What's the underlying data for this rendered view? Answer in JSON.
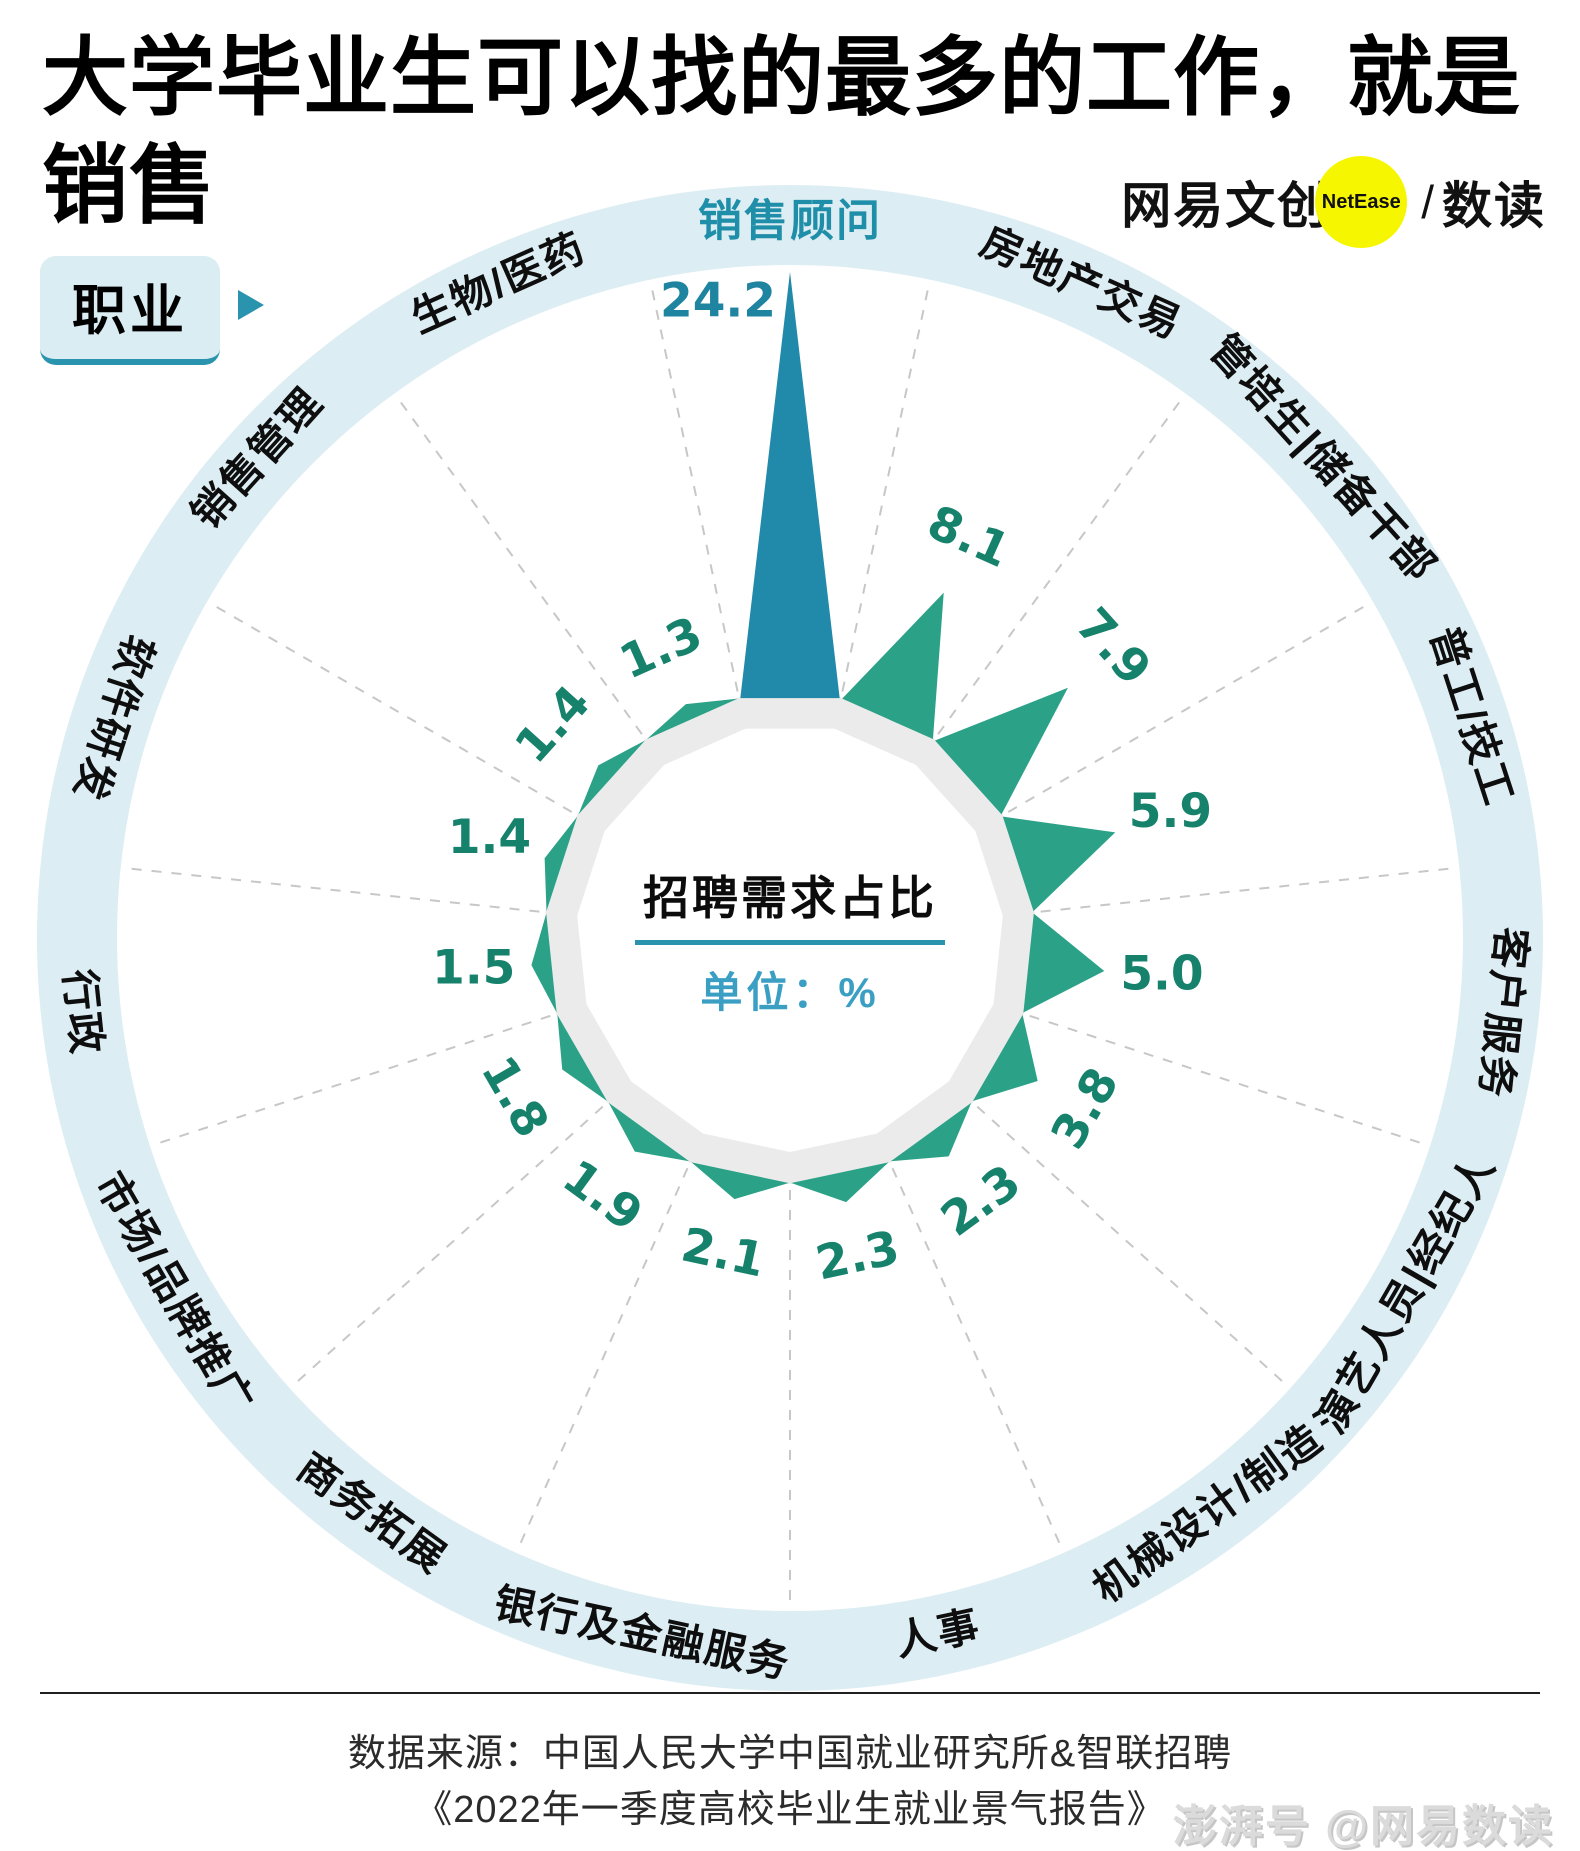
{
  "header": {
    "title_line1": "大学毕业生可以找的最多的工作，就是",
    "title_line2": "销售",
    "category_badge": "职业"
  },
  "logo": {
    "brand": "网易文创",
    "circle_badge": "NetEase",
    "slash": "/",
    "sub_brand": "数读"
  },
  "chart_data": {
    "type": "bar",
    "polar": true,
    "title": "招聘需求占比",
    "center_title": "招聘需求占比",
    "center_unit_label": "单位：%",
    "unit": "%",
    "start_angle_deg": 0,
    "angle_step_deg": 24,
    "highlight_index": 0,
    "highlight_category": "销售顾问",
    "categories": [
      "销售顾问",
      "房地产交易",
      "管培生|储备干部",
      "普工/技工",
      "客户服务",
      "演艺人员|经纪人",
      "机械设计/制造",
      "人事",
      "银行及金融服务",
      "商务拓展",
      "市场/品牌推广",
      "行政",
      "软件研发",
      "销售管理",
      "生物/医药"
    ],
    "values": [
      24.2,
      8.1,
      7.9,
      5.9,
      5.0,
      3.8,
      2.3,
      2.3,
      2.1,
      1.9,
      1.8,
      1.5,
      1.4,
      1.4,
      1.3
    ],
    "colors": {
      "highlight_spike": "#2189a9",
      "normal_spike": "#2ba287",
      "value_text": "#16826c",
      "value_text_highlight": "#1e84a0",
      "label_band": "#dcedf3",
      "inner_ring": "#ebebeb",
      "category_text": "#0e0e0e",
      "category_highlight_text": "#1f8ea8",
      "dashed_line": "#c7c7c7",
      "accent_teal": "#2a93ad"
    }
  },
  "footer": {
    "source_line1": "数据来源：中国人民大学中国就业研究所&智联招聘",
    "source_line2": "《2022年一季度高校毕业生就业景气报告》",
    "watermark": "澎湃号 @网易数读"
  }
}
